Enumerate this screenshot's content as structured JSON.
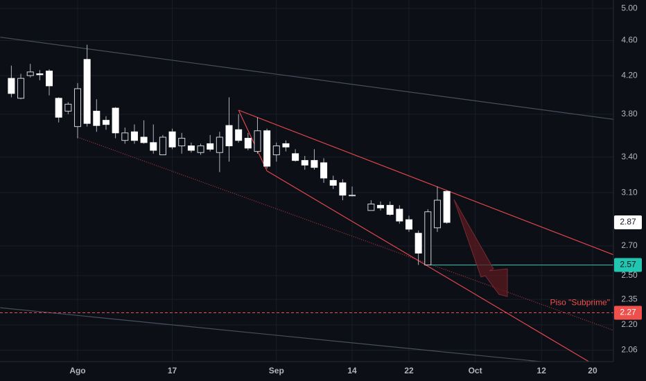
{
  "chart_data": {
    "type": "candlestick",
    "log_scale": true,
    "grid": true,
    "x": [
      0,
      1,
      2,
      3,
      4,
      5,
      6,
      7,
      8,
      9,
      10,
      11,
      12,
      13,
      14,
      15,
      16,
      17,
      18,
      19,
      20,
      21,
      22,
      23,
      24,
      25,
      26,
      27,
      28,
      29,
      30,
      31,
      32,
      33,
      34,
      35,
      36,
      38,
      39,
      40,
      41,
      42,
      43,
      44,
      45,
      46
    ],
    "open": [
      4.17,
      3.96,
      4.2,
      4.22,
      4.25,
      3.96,
      3.83,
      3.68,
      4.38,
      3.83,
      3.74,
      3.86,
      3.55,
      3.63,
      3.58,
      3.53,
      3.42,
      3.63,
      3.5,
      3.5,
      3.44,
      3.52,
      3.44,
      3.69,
      3.65,
      3.57,
      3.45,
      3.64,
      3.42,
      3.52,
      3.43,
      3.37,
      3.37,
      3.35,
      3.2,
      3.18,
      3.08,
      2.96,
      3.0,
      3.0,
      2.97,
      2.89,
      2.79,
      2.57,
      2.83,
      3.11
    ],
    "high": [
      4.31,
      4.22,
      4.33,
      4.26,
      4.27,
      3.97,
      3.92,
      4.12,
      4.55,
      3.95,
      3.78,
      3.87,
      3.67,
      3.7,
      3.74,
      3.7,
      3.6,
      3.66,
      3.62,
      3.53,
      3.52,
      3.6,
      3.63,
      3.97,
      3.8,
      3.62,
      3.77,
      3.66,
      3.53,
      3.55,
      3.47,
      3.41,
      3.47,
      3.39,
      3.24,
      3.21,
      3.15,
      3.04,
      3.03,
      3.03,
      3.0,
      2.92,
      2.81,
      2.97,
      3.15,
      3.12
    ],
    "low": [
      3.97,
      3.95,
      4.18,
      4.15,
      3.99,
      3.72,
      3.8,
      3.57,
      3.68,
      3.63,
      3.65,
      3.57,
      3.52,
      3.52,
      3.52,
      3.43,
      3.42,
      3.47,
      3.43,
      3.44,
      3.42,
      3.45,
      3.27,
      3.36,
      3.53,
      3.46,
      3.43,
      3.3,
      3.36,
      3.45,
      3.36,
      3.29,
      3.29,
      3.18,
      3.13,
      3.04,
      3.07,
      2.96,
      2.96,
      2.92,
      2.86,
      2.8,
      2.57,
      2.57,
      2.8,
      2.86
    ],
    "close": [
      4.01,
      4.17,
      4.24,
      4.21,
      4.09,
      3.77,
      3.9,
      4.06,
      3.71,
      3.69,
      3.7,
      3.62,
      3.62,
      3.55,
      3.53,
      3.46,
      3.58,
      3.49,
      3.57,
      3.46,
      3.5,
      3.47,
      3.58,
      3.5,
      3.55,
      3.48,
      3.64,
      3.32,
      3.5,
      3.49,
      3.37,
      3.33,
      3.31,
      3.22,
      3.16,
      3.08,
      3.08,
      3.01,
      2.98,
      2.93,
      2.88,
      2.82,
      2.65,
      2.95,
      3.04,
      2.87
    ],
    "up_color": "#d1d4dc",
    "down_color": "#ffffff",
    "wick_color": "#b2b5be",
    "xlim": [
      -1.2,
      63.6
    ],
    "ylim": [
      2.0,
      5.11
    ],
    "xticks": [
      {
        "value": 7,
        "label": "Ago"
      },
      {
        "value": 17,
        "label": "17"
      },
      {
        "value": 28,
        "label": "Sep"
      },
      {
        "value": 36,
        "label": "14"
      },
      {
        "value": 42,
        "label": "22"
      },
      {
        "value": 49,
        "label": "Oct"
      },
      {
        "value": 56,
        "label": "12"
      },
      {
        "value": 61.4,
        "label": "20"
      }
    ],
    "yticks": [
      {
        "value": 5,
        "label": "5.00"
      },
      {
        "value": 4.6,
        "label": "4.60"
      },
      {
        "value": 4.2,
        "label": "4.20"
      },
      {
        "value": 3.8,
        "label": "3.80"
      },
      {
        "value": 3.4,
        "label": "3.40"
      },
      {
        "value": 3.1,
        "label": "3.10"
      },
      {
        "value": 2.7,
        "label": "2.70"
      },
      {
        "value": 2.5,
        "label": "2.50"
      },
      {
        "value": 2.35,
        "label": "2.35"
      },
      {
        "value": 2.2,
        "label": "2.20"
      },
      {
        "value": 2.06,
        "label": "2.06"
      }
    ],
    "trendlines": [
      {
        "x": [
          -1.17,
          63.57
        ],
        "y": [
          4.64,
          3.75
        ],
        "color": "#4a4f5c",
        "style": "solid"
      },
      {
        "x": [
          -1.17,
          55.9
        ],
        "y": [
          2.3,
          2.0
        ],
        "color": "#4a4f5c",
        "style": "solid"
      },
      {
        "x": [
          24,
          63.57
        ],
        "y": [
          3.84,
          2.64
        ],
        "color": "#e0474c",
        "style": "solid"
      },
      {
        "x": [
          24,
          27
        ],
        "y": [
          3.84,
          3.28
        ],
        "color": "#e0474c",
        "style": "solid"
      },
      {
        "x": [
          27,
          61
        ],
        "y": [
          3.28,
          2.0
        ],
        "color": "#e0474c",
        "style": "solid"
      },
      {
        "x": [
          7,
          63.57
        ],
        "y": [
          3.58,
          2.17
        ],
        "color": "#b03a40",
        "style": "dotted"
      }
    ],
    "levels": [
      {
        "value": 2.57,
        "from_x": 44,
        "color": "#22c5b0",
        "style": "solid",
        "text_color": "#0c0f16"
      },
      {
        "value": 2.27,
        "from_x": -1.2,
        "color": "#f0504c",
        "style": "dashed",
        "text_color": "#ffffff",
        "annotation": "Piso \"Subprime\""
      }
    ],
    "last_price": {
      "value": 2.87,
      "color": "#ffffff",
      "text_color": "#131722"
    }
  }
}
